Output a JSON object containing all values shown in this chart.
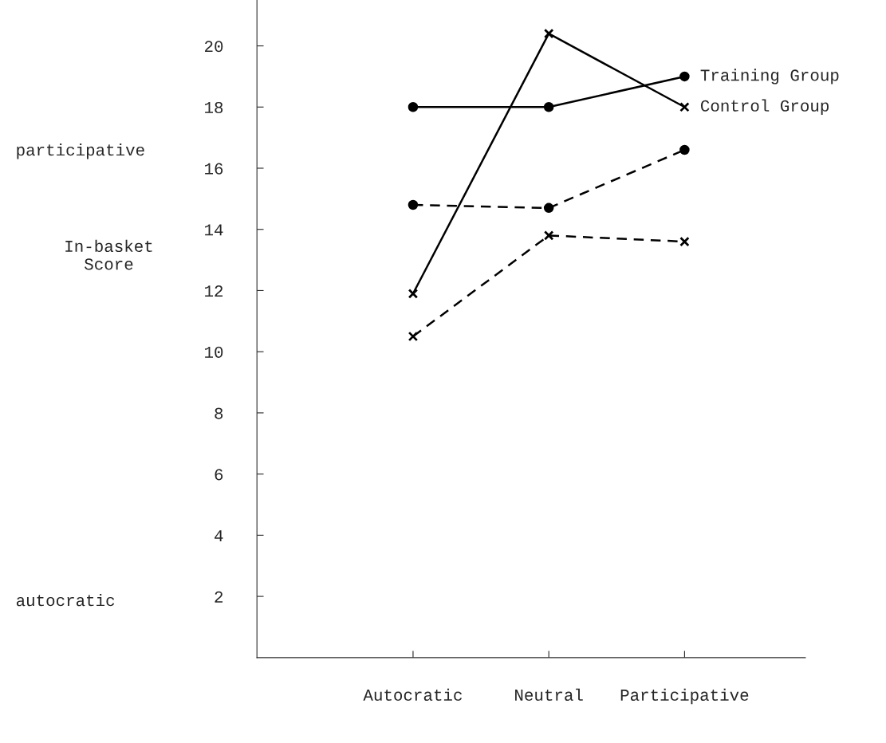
{
  "chart_data": {
    "type": "line",
    "ylabel": "In-basket\nScore",
    "categories": [
      "Autocratic",
      "Neutral",
      "Participative"
    ],
    "series": [
      {
        "name": "Training Group",
        "color": "#000000",
        "values": [
          18,
          18,
          19
        ],
        "line_style": "solid",
        "marker": "circle"
      },
      {
        "name": "Control Group",
        "color": "#000000",
        "values": [
          11.9,
          20.4,
          18
        ],
        "line_style": "solid",
        "marker": "cross"
      },
      {
        "color": "#000000",
        "values": [
          14.8,
          14.7,
          16.6
        ],
        "line_style": "dashed",
        "marker": "circle"
      },
      {
        "color": "#000000",
        "values": [
          10.5,
          13.8,
          13.6
        ],
        "line_style": "dashed",
        "marker": "cross"
      }
    ],
    "ylim": [
      0,
      21.5
    ],
    "yticks": [
      2,
      4,
      6,
      8,
      10,
      12,
      14,
      16,
      18,
      20
    ],
    "annotations": [
      "participative",
      "autocratic"
    ],
    "grid": false,
    "legend": false
  }
}
